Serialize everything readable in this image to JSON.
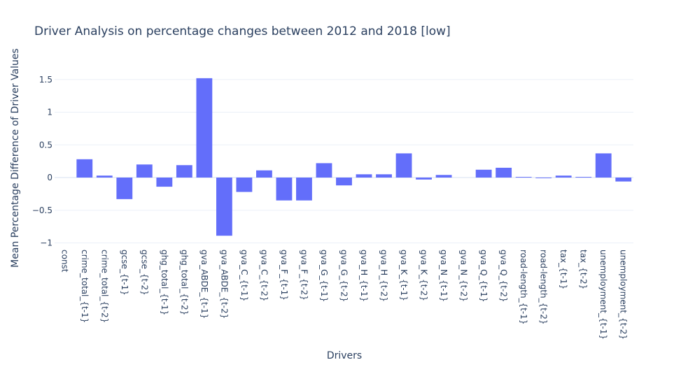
{
  "chart_data": {
    "type": "bar",
    "title": "Driver Analysis on percentage changes between 2012 and 2018 [low]",
    "xlabel": "Drivers",
    "ylabel": "Mean Percentage Difference of Driver Values",
    "ylim": [
      -1.05,
      1.9
    ],
    "yticks": [
      1.5,
      1,
      0.5,
      0,
      -0.5,
      -1
    ],
    "ytick_labels": [
      "1.5",
      "1",
      "0.5",
      "0",
      "−0.5",
      "−1"
    ],
    "grid": true,
    "bar_color": "#636efa",
    "categories": [
      "const",
      "crime_total_{t-1}",
      "crime_total_{t-2}",
      "gcse_{t-1}",
      "gcse_{t-2}",
      "ghg_total_{t-1}",
      "ghg_total_{t-2}",
      "gva_ABDE_{t-1}",
      "gva_ABDE_{t-2}",
      "gva_C_{t-1}",
      "gva_C_{t-2}",
      "gva_F_{t-1}",
      "gva_F_{t-2}",
      "gva_G_{t-1}",
      "gva_G_{t-2}",
      "gva_H_{t-1}",
      "gva_H_{t-2}",
      "gva_K_{t-1}",
      "gva_K_{t-2}",
      "gva_N_{t-1}",
      "gva_N_{t-2}",
      "gva_Q_{t-1}",
      "gva_Q_{t-2}",
      "road-length_{t-1}",
      "road-length_{t-2}",
      "tax_{t-1}",
      "tax_{t-2}",
      "unemployment_{t-1}",
      "unemployment_{t-2}"
    ],
    "values": [
      0,
      0.28,
      0.03,
      -0.33,
      0.2,
      -0.14,
      0.19,
      1.52,
      -0.89,
      -0.22,
      0.11,
      -0.35,
      -0.35,
      0.22,
      -0.12,
      0.05,
      0.05,
      0.37,
      -0.03,
      0.04,
      0,
      0.12,
      0.15,
      0.01,
      -0.01,
      0.03,
      0.01,
      0.37,
      -0.06
    ]
  }
}
